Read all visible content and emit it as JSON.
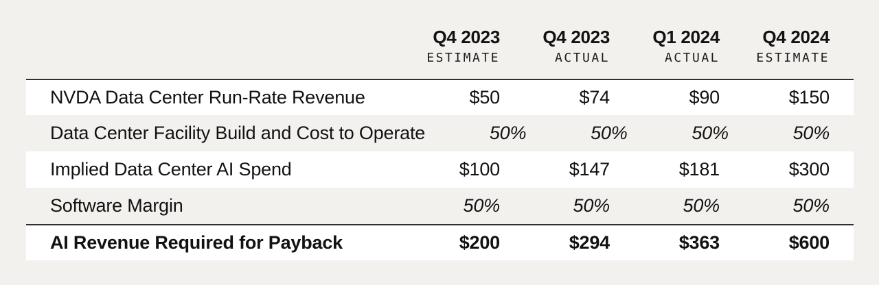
{
  "colors": {
    "page_background": "#f2f1ee",
    "highlight_row_background": "#ffffff",
    "rule": "#303030",
    "text": "#121212"
  },
  "table": {
    "columns": [
      {
        "period": "Q4 2023",
        "qualifier": "ESTIMATE"
      },
      {
        "period": "Q4 2023",
        "qualifier": "ACTUAL"
      },
      {
        "period": "Q1 2024",
        "qualifier": "ACTUAL"
      },
      {
        "period": "Q4 2024",
        "qualifier": "ESTIMATE"
      }
    ],
    "rows": [
      {
        "label": "NVDA Data Center Run-Rate Revenue",
        "values": [
          "$50",
          "$74",
          "$90",
          "$150"
        ],
        "style": "normal"
      },
      {
        "label": "Data Center Facility Build and Cost to Operate",
        "values": [
          "50%",
          "50%",
          "50%",
          "50%"
        ],
        "style": "percent"
      },
      {
        "label": "Implied Data Center AI Spend",
        "values": [
          "$100",
          "$147",
          "$181",
          "$300"
        ],
        "style": "normal"
      },
      {
        "label": "Software Margin",
        "values": [
          "50%",
          "50%",
          "50%",
          "50%"
        ],
        "style": "percent"
      },
      {
        "label": "AI Revenue Required for Payback",
        "values": [
          "$200",
          "$294",
          "$363",
          "$600"
        ],
        "style": "total"
      }
    ]
  },
  "chart_data": {
    "type": "table",
    "title": "",
    "columns": [
      "Q4 2023 ESTIMATE",
      "Q4 2023 ACTUAL",
      "Q1 2024 ACTUAL",
      "Q4 2024 ESTIMATE"
    ],
    "rows": [
      {
        "label": "NVDA Data Center Run-Rate Revenue",
        "values": [
          "$50",
          "$74",
          "$90",
          "$150"
        ]
      },
      {
        "label": "Data Center Facility Build and Cost to Operate",
        "values": [
          "50%",
          "50%",
          "50%",
          "50%"
        ]
      },
      {
        "label": "Implied Data Center AI Spend",
        "values": [
          "$100",
          "$147",
          "$181",
          "$300"
        ]
      },
      {
        "label": "Software Margin",
        "values": [
          "50%",
          "50%",
          "50%",
          "50%"
        ]
      },
      {
        "label": "AI Revenue Required for Payback",
        "values": [
          "$200",
          "$294",
          "$363",
          "$600"
        ]
      }
    ]
  }
}
